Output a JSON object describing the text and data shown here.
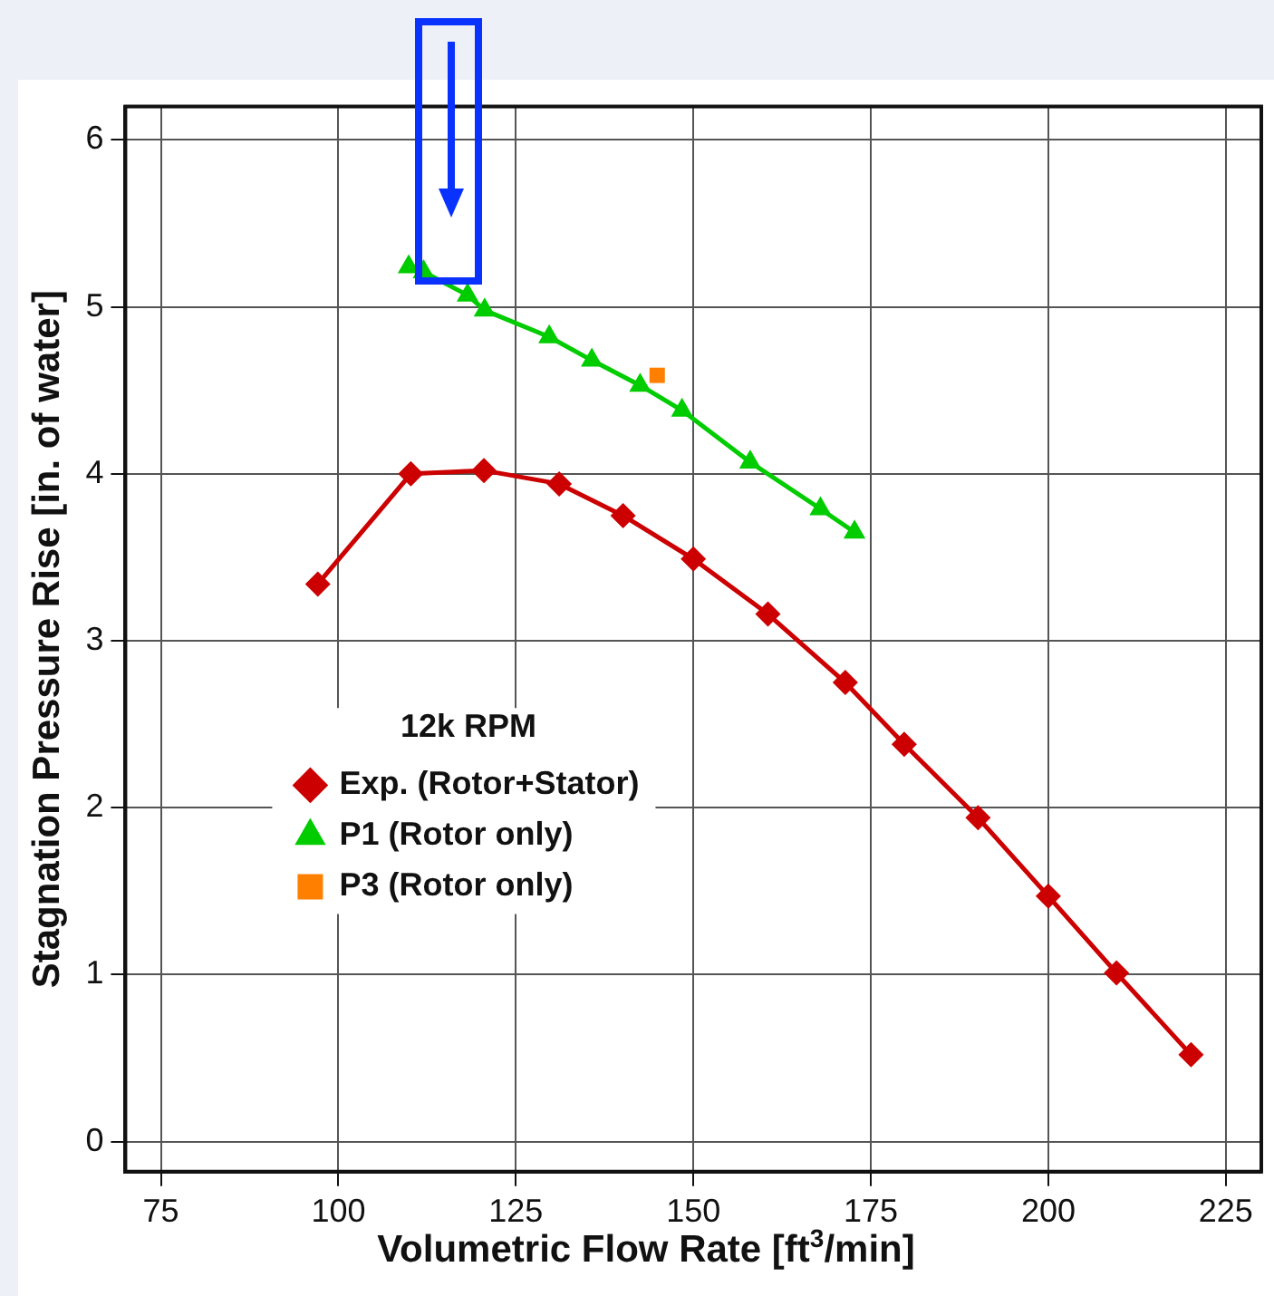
{
  "chart_data": {
    "type": "line",
    "xlabel": "Volumetric Flow Rate [ft$^{3}$/min]",
    "ylabel": "Stagnation Pressure Rise [in. of water]",
    "legend_title": "12k RPM",
    "xlim": [
      70,
      230
    ],
    "xticks": [
      75,
      100,
      125,
      150,
      175,
      200,
      225
    ],
    "ylim": [
      -0.18,
      6.2
    ],
    "yticks": [
      0,
      1,
      2,
      3,
      4,
      5,
      6
    ],
    "grid": true,
    "legend": "left",
    "series": [
      {
        "name": "Exp. (Rotor+Stator)",
        "marker": "diamond",
        "color": "#cc0000",
        "x": [
          97.1,
          110.2,
          120.5,
          131.1,
          140.1,
          150,
          160.5,
          171.4,
          179.7,
          190.1,
          200,
          209.6,
          220.1
        ],
        "values": [
          3.34,
          4.0,
          4.02,
          3.94,
          3.75,
          3.49,
          3.16,
          2.75,
          2.38,
          1.94,
          1.47,
          1.01,
          0.52
        ]
      },
      {
        "name": "P1 (Rotor only)",
        "marker": "triangle",
        "color": "#00cc00",
        "x": [
          109.9,
          112,
          118.2,
          120.6,
          129.7,
          135.7,
          142.5,
          148.4,
          158,
          167.9,
          172.7
        ],
        "values": [
          5.24,
          5.21,
          5.07,
          4.98,
          4.82,
          4.68,
          4.53,
          4.38,
          4.07,
          3.79,
          3.65
        ]
      },
      {
        "name": "P3 (Rotor only)",
        "type": "scatter",
        "marker": "square",
        "color": "#ff8000",
        "x": [
          144.9
        ],
        "values": [
          4.59
        ]
      }
    ]
  }
}
